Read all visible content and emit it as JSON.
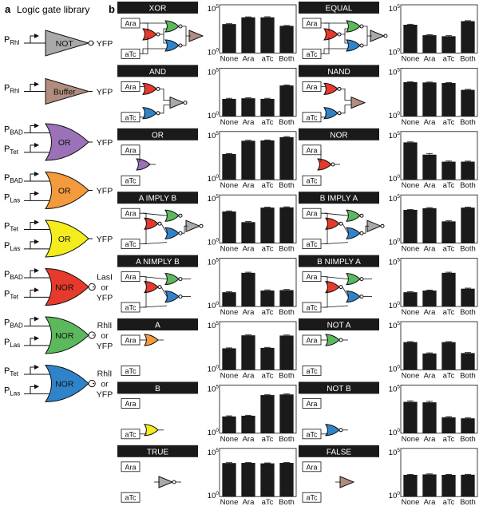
{
  "panel_a": {
    "letter": "a",
    "title": "Logic gate library",
    "gates": [
      {
        "inputs": [
          {
            "p": "P",
            "sub": "Rhl"
          }
        ],
        "gate": "NOT",
        "shape": "not",
        "color": "#a9a9a9",
        "output": [
          "YFP"
        ]
      },
      {
        "inputs": [
          {
            "p": "P",
            "sub": "Rhl"
          }
        ],
        "gate": "Buffer",
        "shape": "buffer",
        "color": "#b08d7e",
        "output": [
          "YFP"
        ]
      },
      {
        "inputs": [
          {
            "p": "P",
            "sub": "BAD"
          },
          {
            "p": "P",
            "sub": "Tet"
          }
        ],
        "gate": "OR",
        "shape": "or",
        "color": "#9b72b8",
        "output": [
          "YFP"
        ]
      },
      {
        "inputs": [
          {
            "p": "P",
            "sub": "BAD"
          },
          {
            "p": "P",
            "sub": "Las"
          }
        ],
        "gate": "OR",
        "shape": "or",
        "color": "#f39a3c",
        "output": [
          "YFP"
        ]
      },
      {
        "inputs": [
          {
            "p": "P",
            "sub": "Tet"
          },
          {
            "p": "P",
            "sub": "Las"
          }
        ],
        "gate": "OR",
        "shape": "or",
        "color": "#f5ec1e",
        "output": [
          "YFP"
        ]
      },
      {
        "inputs": [
          {
            "p": "P",
            "sub": "BAD"
          },
          {
            "p": "P",
            "sub": "Tet"
          }
        ],
        "gate": "NOR",
        "shape": "nor",
        "color": "#e53a2c",
        "output": [
          "LasI",
          "or",
          "YFP"
        ]
      },
      {
        "inputs": [
          {
            "p": "P",
            "sub": "BAD"
          },
          {
            "p": "P",
            "sub": "Las"
          }
        ],
        "gate": "NOR",
        "shape": "nor",
        "color": "#5cb85c",
        "output": [
          "RhlI",
          "or",
          "YFP"
        ]
      },
      {
        "inputs": [
          {
            "p": "P",
            "sub": "Tet"
          },
          {
            "p": "P",
            "sub": "Las"
          }
        ],
        "gate": "NOR",
        "shape": "nor",
        "color": "#2f84c9",
        "output": [
          "RhlI",
          "or",
          "YFP"
        ]
      }
    ]
  },
  "panel_b": {
    "letter": "b",
    "input_labels": {
      "a": "Ara",
      "b": "aTc"
    },
    "axis": {
      "top_base": "10",
      "top_exp": "5",
      "bottom_base": "10",
      "bottom_exp": "0"
    },
    "categories": [
      "None",
      "Ara",
      "aTc",
      "Both"
    ],
    "colors": {
      "red": "#e53a2c",
      "green": "#5cb85c",
      "blue": "#2f84c9",
      "gray": "#a9a9a9",
      "brown": "#b08d7e",
      "purple": "#9b72b8",
      "orange": "#f39a3c",
      "yellow": "#f5ec1e"
    }
  },
  "chart_data": [
    {
      "title": "XOR",
      "type": "bar",
      "scale": "log",
      "ylim": [
        1,
        100000
      ],
      "categories": [
        "None",
        "Ara",
        "aTc",
        "Both"
      ],
      "values": [
        1000,
        5000,
        5000,
        650
      ],
      "errors": [
        90,
        600,
        750,
        60
      ]
    },
    {
      "title": "EQUAL",
      "type": "bar",
      "scale": "log",
      "ylim": [
        1,
        100000
      ],
      "categories": [
        "None",
        "Ara",
        "aTc",
        "Both"
      ],
      "values": [
        850,
        70,
        55,
        2000
      ],
      "errors": [
        120,
        10,
        8,
        250
      ]
    },
    {
      "title": "AND",
      "type": "bar",
      "scale": "log",
      "ylim": [
        1,
        100000
      ],
      "categories": [
        "None",
        "Ara",
        "aTc",
        "Both"
      ],
      "values": [
        65,
        75,
        65,
        1600
      ],
      "errors": [
        10,
        12,
        10,
        220
      ]
    },
    {
      "title": "NAND",
      "type": "bar",
      "scale": "log",
      "ylim": [
        1,
        100000
      ],
      "categories": [
        "None",
        "Ara",
        "aTc",
        "Both"
      ],
      "values": [
        3500,
        3300,
        2900,
        560
      ],
      "errors": [
        300,
        300,
        280,
        70
      ]
    },
    {
      "title": "OR",
      "type": "bar",
      "scale": "log",
      "ylim": [
        1,
        100000
      ],
      "categories": [
        "None",
        "Ara",
        "aTc",
        "Both"
      ],
      "values": [
        470,
        11000,
        12000,
        26000
      ],
      "errors": [
        50,
        1500,
        1500,
        4000
      ]
    },
    {
      "title": "NOR",
      "type": "bar",
      "scale": "log",
      "ylim": [
        1,
        100000
      ],
      "categories": [
        "None",
        "Ara",
        "aTc",
        "Both"
      ],
      "values": [
        7500,
        400,
        75,
        75
      ],
      "errors": [
        900,
        130,
        12,
        10
      ]
    },
    {
      "title": "A IMPLY B",
      "type": "bar",
      "scale": "log",
      "ylim": [
        1,
        100000
      ],
      "categories": [
        "None",
        "Ara",
        "aTc",
        "Both"
      ],
      "values": [
        1900,
        150,
        4800,
        5100
      ],
      "errors": [
        300,
        25,
        650,
        700
      ]
    },
    {
      "title": "B IMPLY A",
      "type": "bar",
      "scale": "log",
      "ylim": [
        1,
        100000
      ],
      "categories": [
        "None",
        "Ara",
        "aTc",
        "Both"
      ],
      "values": [
        2800,
        4200,
        180,
        4800
      ],
      "errors": [
        350,
        600,
        25,
        650
      ]
    },
    {
      "title": "A NIMPLY B",
      "type": "bar",
      "scale": "log",
      "ylim": [
        1,
        100000
      ],
      "categories": [
        "None",
        "Ara",
        "aTc",
        "Both"
      ],
      "values": [
        30,
        3100,
        45,
        50
      ],
      "errors": [
        4,
        500,
        8,
        8
      ]
    },
    {
      "title": "B NIMPLY A",
      "type": "bar",
      "scale": "log",
      "ylim": [
        1,
        100000
      ],
      "categories": [
        "None",
        "Ara",
        "aTc",
        "Both"
      ],
      "values": [
        30,
        45,
        3100,
        70
      ],
      "errors": [
        4,
        6,
        500,
        10
      ]
    },
    {
      "title": "A",
      "type": "bar",
      "scale": "log",
      "ylim": [
        1,
        100000
      ],
      "categories": [
        "None",
        "Ara",
        "aTc",
        "Both"
      ],
      "values": [
        170,
        3800,
        190,
        3600
      ],
      "errors": [
        20,
        500,
        25,
        500
      ]
    },
    {
      "title": "NOT A",
      "type": "bar",
      "scale": "log",
      "ylim": [
        1,
        100000
      ],
      "categories": [
        "None",
        "Ara",
        "aTc",
        "Both"
      ],
      "values": [
        750,
        50,
        750,
        55
      ],
      "errors": [
        100,
        8,
        100,
        8
      ]
    },
    {
      "title": "B",
      "type": "bar",
      "scale": "log",
      "ylim": [
        1,
        100000
      ],
      "categories": [
        "None",
        "Ara",
        "aTc",
        "Both"
      ],
      "values": [
        55,
        65,
        9000,
        10500
      ],
      "errors": [
        8,
        8,
        1400,
        1500
      ]
    },
    {
      "title": "NOT B",
      "type": "bar",
      "scale": "log",
      "ylim": [
        1,
        100000
      ],
      "categories": [
        "None",
        "Ara",
        "aTc",
        "Both"
      ],
      "values": [
        1800,
        1600,
        45,
        35
      ],
      "errors": [
        500,
        450,
        8,
        6
      ]
    },
    {
      "title": "TRUE",
      "type": "bar",
      "scale": "log",
      "ylim": [
        1,
        100000
      ],
      "categories": [
        "None",
        "Ara",
        "aTc",
        "Both"
      ],
      "values": [
        3000,
        3100,
        2800,
        3100
      ],
      "errors": [
        300,
        300,
        300,
        300
      ]
    },
    {
      "title": "FALSE",
      "type": "bar",
      "scale": "log",
      "ylim": [
        1,
        100000
      ],
      "categories": [
        "None",
        "Ara",
        "aTc",
        "Both"
      ],
      "values": [
        180,
        200,
        180,
        185
      ],
      "errors": [
        20,
        25,
        20,
        20
      ]
    }
  ]
}
